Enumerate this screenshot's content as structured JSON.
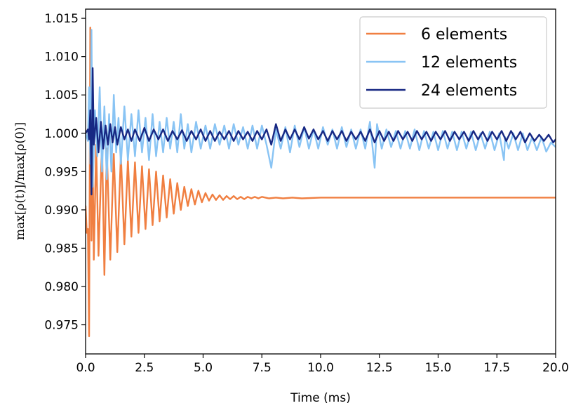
{
  "chart_data": {
    "type": "line",
    "xlabel": "Time (ms)",
    "ylabel": "max[ρ(t)]/max[ρ(0)]",
    "xlim": [
      0,
      20
    ],
    "ylim": [
      0.9712,
      1.0162
    ],
    "x_ticks": [
      "0.0",
      "2.5",
      "5.0",
      "7.5",
      "10.0",
      "12.5",
      "15.0",
      "17.5",
      "20.0"
    ],
    "y_ticks": [
      "0.975",
      "0.980",
      "0.985",
      "0.990",
      "0.995",
      "1.000",
      "1.005",
      "1.010",
      "1.015"
    ],
    "legend_position": "top-right",
    "grid": false,
    "series": [
      {
        "name": "6 elements",
        "color": "#F07F41",
        "x": [
          0.0,
          0.05,
          0.1,
          0.15,
          0.2,
          0.25,
          0.3,
          0.35,
          0.45,
          0.55,
          0.7,
          0.8,
          0.9,
          1.05,
          1.2,
          1.35,
          1.5,
          1.65,
          1.8,
          1.95,
          2.1,
          2.25,
          2.4,
          2.55,
          2.7,
          2.85,
          3.0,
          3.15,
          3.3,
          3.45,
          3.6,
          3.75,
          3.9,
          4.05,
          4.2,
          4.35,
          4.5,
          4.65,
          4.8,
          4.95,
          5.1,
          5.25,
          5.4,
          5.55,
          5.7,
          5.85,
          6.0,
          6.15,
          6.3,
          6.45,
          6.6,
          6.75,
          6.9,
          7.05,
          7.2,
          7.35,
          7.5,
          7.8,
          8.1,
          8.4,
          8.8,
          9.2,
          10.0,
          12.0,
          15.0,
          20.0
        ],
        "y": [
          0.9905,
          0.987,
          0.9875,
          0.9735,
          1.0138,
          0.986,
          0.997,
          0.9835,
          0.9985,
          0.984,
          0.999,
          0.9815,
          0.998,
          0.9835,
          0.9973,
          0.9845,
          0.9972,
          0.9855,
          0.9965,
          0.9865,
          0.9962,
          0.987,
          0.9957,
          0.9875,
          0.9953,
          0.988,
          0.995,
          0.9885,
          0.9945,
          0.989,
          0.994,
          0.9895,
          0.9935,
          0.99,
          0.993,
          0.9905,
          0.9927,
          0.9907,
          0.9925,
          0.991,
          0.9922,
          0.9912,
          0.992,
          0.9913,
          0.9919,
          0.9913,
          0.9918,
          0.9914,
          0.9918,
          0.9914,
          0.9917,
          0.9914,
          0.9917,
          0.9915,
          0.9917,
          0.9915,
          0.9917,
          0.9915,
          0.9916,
          0.9915,
          0.9916,
          0.9915,
          0.9916,
          0.9916,
          0.9916,
          0.9916
        ]
      },
      {
        "name": "12 elements",
        "color": "#89C4F4",
        "x": [
          0.0,
          0.1,
          0.15,
          0.2,
          0.25,
          0.3,
          0.4,
          0.5,
          0.6,
          0.7,
          0.8,
          0.9,
          1.0,
          1.1,
          1.2,
          1.3,
          1.4,
          1.5,
          1.65,
          1.8,
          1.95,
          2.1,
          2.25,
          2.4,
          2.55,
          2.7,
          2.85,
          3.0,
          3.15,
          3.3,
          3.45,
          3.6,
          3.75,
          3.9,
          4.05,
          4.2,
          4.35,
          4.5,
          4.7,
          4.9,
          5.1,
          5.3,
          5.5,
          5.7,
          5.9,
          6.1,
          6.3,
          6.5,
          6.7,
          6.9,
          7.1,
          7.3,
          7.5,
          7.7,
          7.9,
          8.1,
          8.3,
          8.5,
          8.7,
          8.9,
          9.1,
          9.3,
          9.5,
          9.7,
          9.9,
          10.1,
          10.3,
          10.5,
          10.7,
          10.9,
          11.1,
          11.3,
          11.5,
          11.7,
          11.9,
          12.1,
          12.3,
          12.4,
          12.6,
          12.8,
          13.0,
          13.2,
          13.4,
          13.6,
          13.8,
          14.0,
          14.2,
          14.4,
          14.6,
          14.8,
          15.0,
          15.2,
          15.4,
          15.6,
          15.8,
          16.0,
          16.2,
          16.4,
          16.6,
          16.8,
          17.0,
          17.2,
          17.4,
          17.6,
          17.8,
          17.85,
          18.0,
          18.2,
          18.4,
          18.6,
          18.8,
          19.0,
          19.2,
          19.4,
          19.6,
          19.8,
          20.0
        ],
        "y": [
          1.0,
          0.999,
          1.006,
          0.996,
          1.0135,
          0.993,
          1.003,
          0.997,
          1.006,
          0.995,
          1.0035,
          0.994,
          1.0025,
          0.995,
          1.005,
          0.9975,
          1.002,
          0.996,
          1.0035,
          0.9965,
          1.0025,
          0.997,
          1.003,
          0.9975,
          1.002,
          0.9965,
          1.0025,
          0.997,
          1.0015,
          0.9975,
          1.002,
          0.998,
          1.0015,
          0.9975,
          1.0025,
          0.998,
          1.0012,
          0.9975,
          1.0015,
          0.998,
          1.001,
          0.998,
          1.0012,
          0.9985,
          1.001,
          0.998,
          1.0012,
          0.9985,
          1.0008,
          0.998,
          1.001,
          0.998,
          1.001,
          0.9985,
          0.9955,
          1.0005,
          0.998,
          1.0008,
          0.9975,
          1.001,
          0.9982,
          1.0008,
          0.998,
          1.0005,
          0.998,
          1.0008,
          0.9985,
          1.0005,
          0.998,
          1.0008,
          0.9982,
          1.0005,
          0.998,
          1.0005,
          0.998,
          1.0015,
          0.9955,
          1.0012,
          0.998,
          1.0005,
          0.9982,
          1.0003,
          0.998,
          1.0003,
          0.998,
          1.0005,
          0.9978,
          1.0003,
          0.998,
          1.0002,
          0.9978,
          1.0003,
          0.998,
          1.0002,
          0.9978,
          1.0002,
          0.998,
          1.0002,
          0.9978,
          1.0,
          0.998,
          1.0002,
          0.9978,
          1.0,
          0.9965,
          0.9995,
          0.998,
          1.0,
          0.9978,
          1.0,
          0.9978,
          0.9995,
          0.9978,
          0.9995,
          0.9976,
          0.9988,
          0.9982
        ]
      },
      {
        "name": "24 elements",
        "color": "#172883",
        "x": [
          0.0,
          0.1,
          0.15,
          0.2,
          0.25,
          0.3,
          0.35,
          0.45,
          0.55,
          0.65,
          0.75,
          0.85,
          0.95,
          1.05,
          1.15,
          1.25,
          1.35,
          1.5,
          1.65,
          1.8,
          1.95,
          2.1,
          2.3,
          2.5,
          2.7,
          2.9,
          3.1,
          3.3,
          3.5,
          3.7,
          3.9,
          4.1,
          4.3,
          4.5,
          4.7,
          4.9,
          5.1,
          5.3,
          5.5,
          5.7,
          5.9,
          6.1,
          6.3,
          6.5,
          6.7,
          6.9,
          7.1,
          7.3,
          7.5,
          7.7,
          7.9,
          8.1,
          8.3,
          8.5,
          8.7,
          8.9,
          9.1,
          9.3,
          9.5,
          9.7,
          9.9,
          10.1,
          10.3,
          10.5,
          10.7,
          10.9,
          11.1,
          11.3,
          11.5,
          11.7,
          11.9,
          12.1,
          12.3,
          12.5,
          12.7,
          12.9,
          13.1,
          13.3,
          13.5,
          13.7,
          13.9,
          14.1,
          14.3,
          14.5,
          14.7,
          14.9,
          15.1,
          15.3,
          15.5,
          15.7,
          15.9,
          16.1,
          16.3,
          16.5,
          16.7,
          16.9,
          17.1,
          17.3,
          17.5,
          17.7,
          17.9,
          18.1,
          18.3,
          18.5,
          18.7,
          18.9,
          19.1,
          19.3,
          19.5,
          19.7,
          19.9,
          20.0
        ],
        "y": [
          1.0,
          1.0005,
          0.9992,
          1.003,
          0.992,
          1.0085,
          0.9985,
          1.002,
          0.9975,
          1.0015,
          0.998,
          1.001,
          0.9985,
          1.0012,
          0.9988,
          1.0008,
          0.9985,
          1.0008,
          0.9992,
          1.0005,
          0.999,
          1.0005,
          0.999,
          1.0007,
          0.999,
          1.0005,
          0.9992,
          1.0005,
          0.999,
          1.0003,
          0.9992,
          1.0004,
          0.999,
          1.0003,
          0.9992,
          1.0005,
          0.999,
          1.0003,
          0.999,
          1.0002,
          0.9992,
          1.0003,
          0.999,
          1.0003,
          0.9992,
          1.0002,
          0.999,
          1.0003,
          0.9992,
          1.0005,
          0.9985,
          1.0012,
          0.999,
          1.0005,
          0.9992,
          1.0005,
          0.9992,
          1.0008,
          0.9993,
          1.0005,
          0.9992,
          1.0003,
          0.999,
          1.0003,
          0.9992,
          1.0003,
          0.999,
          1.0002,
          0.9992,
          1.0002,
          0.999,
          1.0005,
          0.9988,
          1.0003,
          0.999,
          1.0002,
          0.999,
          1.0003,
          0.9992,
          1.0002,
          0.999,
          1.0003,
          0.9992,
          1.0002,
          0.999,
          1.0002,
          0.9992,
          1.0003,
          0.999,
          1.0002,
          0.9992,
          1.0002,
          0.999,
          1.0003,
          0.9992,
          1.0002,
          0.999,
          1.0002,
          0.9992,
          1.0003,
          0.999,
          1.0003,
          0.9992,
          1.0002,
          0.9988,
          1.0,
          0.999,
          0.9998,
          0.999,
          0.9998,
          0.9988,
          0.9992
        ]
      }
    ]
  }
}
